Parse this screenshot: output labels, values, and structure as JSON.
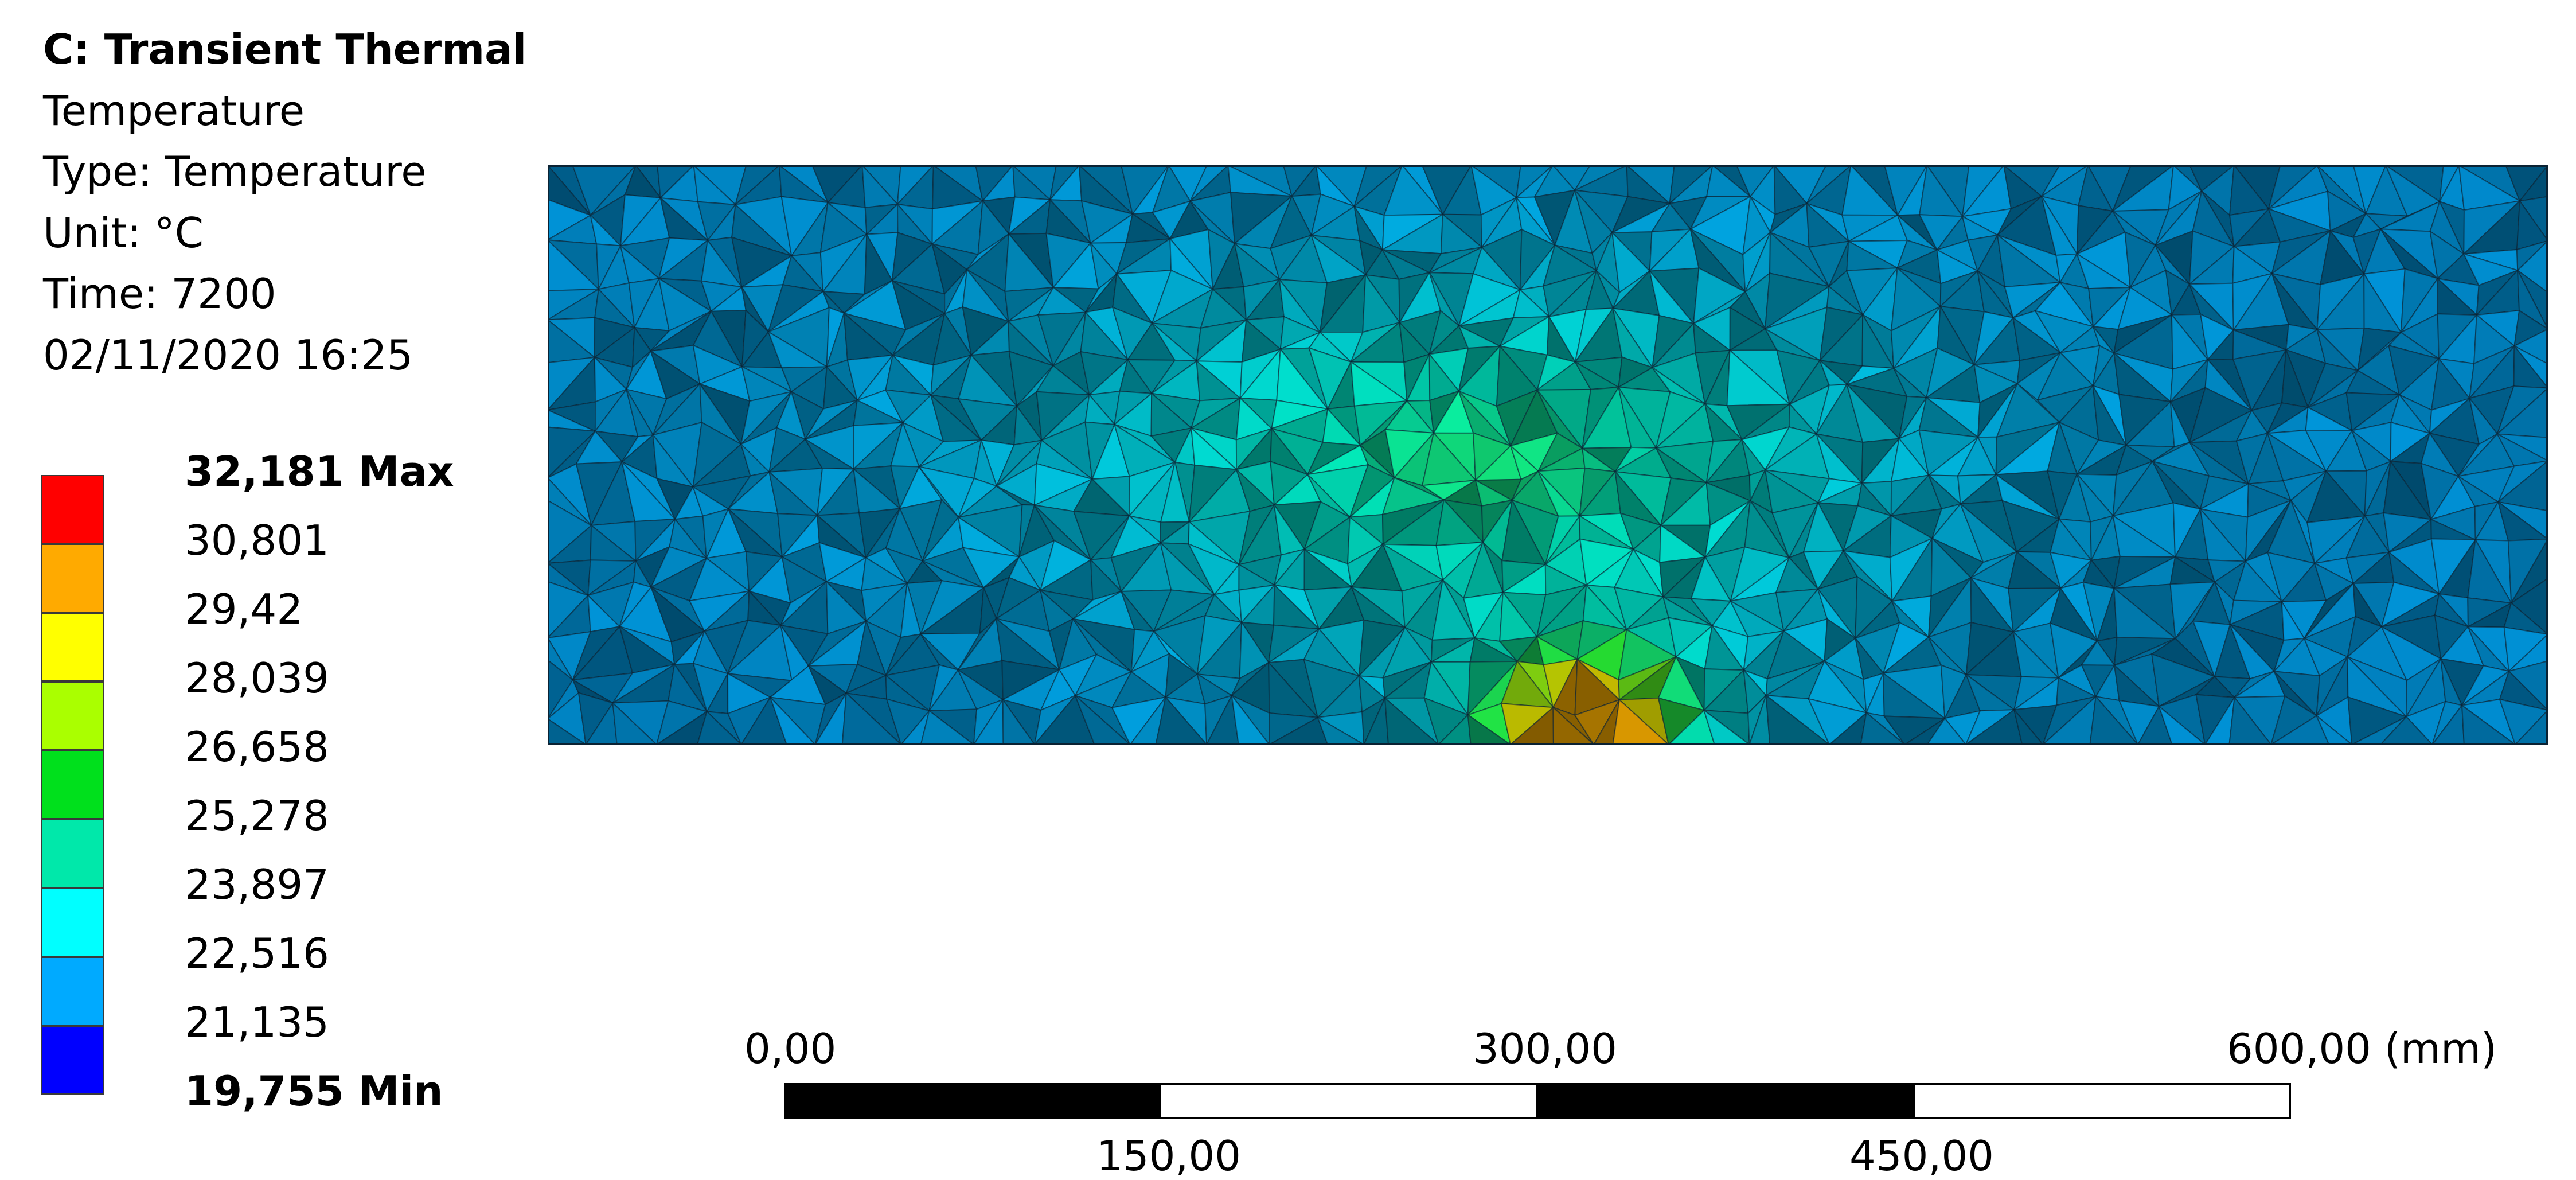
{
  "header": {
    "system": "C: Transient Thermal",
    "result_name": "Temperature",
    "type": "Type: Temperature",
    "unit": "Unit: °C",
    "time": "Time: 7200",
    "timestamp": "02/11/2020 16:25"
  },
  "legend": {
    "entries": [
      {
        "label": "32,181 Max",
        "color": "#ff0000"
      },
      {
        "label": "30,801",
        "color": "#ffaa00"
      },
      {
        "label": "29,42",
        "color": "#ffff00"
      },
      {
        "label": "28,039",
        "color": "#aaff00"
      },
      {
        "label": "26,658",
        "color": "#00e01c"
      },
      {
        "label": "25,278",
        "color": "#00e8aa"
      },
      {
        "label": "23,897",
        "color": "#00ffff"
      },
      {
        "label": "22,516",
        "color": "#00aaff"
      },
      {
        "label": "21,135",
        "color": "#0000ff"
      },
      {
        "label": "19,755 Min"
      }
    ]
  },
  "scale_bar": {
    "top_labels": [
      "0,00",
      "300,00",
      "600,00 (mm)"
    ],
    "bottom_labels": [
      "150,00",
      "450,00"
    ]
  }
}
